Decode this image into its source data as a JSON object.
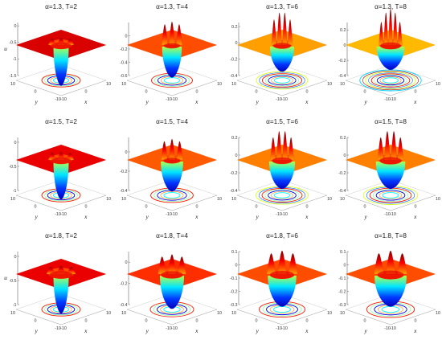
{
  "chart_data": [
    {
      "type": "surface3d",
      "title": "α=1.3, T=2",
      "zlabel": "u",
      "xlabel": "x",
      "ylabel": "y",
      "x_ticks": [
        "-10",
        "0",
        "10"
      ],
      "y_ticks": [
        "-10",
        "0",
        "10"
      ],
      "z_ticks": [
        "0",
        "-0.5",
        "-1",
        "-1.5"
      ],
      "zlim": [
        -1.5,
        0.1
      ],
      "peak": 0.05,
      "trough": -1.5,
      "ring_count": 1,
      "ring_width": 1.0,
      "trough_width": 1.0
    },
    {
      "type": "surface3d",
      "title": "α=1.3, T=4",
      "zlabel": "",
      "xlabel": "x",
      "ylabel": "y",
      "x_ticks": [
        "-10",
        "0",
        "10"
      ],
      "y_ticks": [
        "-10",
        "0",
        "10"
      ],
      "z_ticks": [
        "0",
        "-0.2",
        "-0.4",
        "-0.6"
      ],
      "zlim": [
        -0.6,
        0.2
      ],
      "peak": 0.2,
      "trough": -0.6,
      "ring_count": 1,
      "ring_width": 0.6,
      "trough_width": 1.5
    },
    {
      "type": "surface3d",
      "title": "α=1.3, T=6",
      "zlabel": "",
      "xlabel": "x",
      "ylabel": "y",
      "x_ticks": [
        "-10",
        "0",
        "10"
      ],
      "y_ticks": [
        "-10",
        "0",
        "10"
      ],
      "z_ticks": [
        "0.2",
        "0",
        "-0.2",
        "-0.4"
      ],
      "zlim": [
        -0.4,
        0.25
      ],
      "peak": 0.25,
      "trough": -0.4,
      "ring_count": 2,
      "ring_width": 0.5,
      "trough_width": 2.0
    },
    {
      "type": "surface3d",
      "title": "α=1.3, T=8",
      "zlabel": "",
      "xlabel": "x",
      "ylabel": "y",
      "x_ticks": [
        "-10",
        "0",
        "10"
      ],
      "y_ticks": [
        "-10",
        "0",
        "10"
      ],
      "z_ticks": [
        "0.2",
        "0",
        "-0.2",
        "-0.4"
      ],
      "zlim": [
        -0.4,
        0.3
      ],
      "peak": 0.3,
      "trough": -0.4,
      "ring_count": 3,
      "ring_width": 0.5,
      "trough_width": 2.4
    },
    {
      "type": "surface3d",
      "title": "α=1.5, T=2",
      "zlabel": "",
      "xlabel": "x",
      "ylabel": "y",
      "x_ticks": [
        "-10",
        "0",
        "10"
      ],
      "y_ticks": [
        "-10",
        "0",
        "10"
      ],
      "z_ticks": [
        "0",
        "-0.5",
        "-1"
      ],
      "zlim": [
        -1,
        0.1
      ],
      "peak": 0.05,
      "trough": -1.0,
      "ring_count": 1,
      "ring_width": 1.0,
      "trough_width": 1.0
    },
    {
      "type": "surface3d",
      "title": "α=1.5, T=4",
      "zlabel": "",
      "xlabel": "x",
      "ylabel": "y",
      "x_ticks": [
        "-10",
        "0",
        "10"
      ],
      "y_ticks": [
        "-10",
        "0",
        "10"
      ],
      "z_ticks": [
        "0",
        "-0.2",
        "-0.4"
      ],
      "zlim": [
        -0.4,
        0.15
      ],
      "peak": 0.12,
      "trough": -0.4,
      "ring_count": 1,
      "ring_width": 0.7,
      "trough_width": 1.8
    },
    {
      "type": "surface3d",
      "title": "α=1.5, T=6",
      "zlabel": "",
      "xlabel": "x",
      "ylabel": "y",
      "x_ticks": [
        "-10",
        "0",
        "10"
      ],
      "y_ticks": [
        "-10",
        "0",
        "10"
      ],
      "z_ticks": [
        "0.2",
        "0",
        "-0.2",
        "-0.4"
      ],
      "zlim": [
        -0.4,
        0.2
      ],
      "peak": 0.2,
      "trough": -0.4,
      "ring_count": 2,
      "ring_width": 0.7,
      "trough_width": 2.2
    },
    {
      "type": "surface3d",
      "title": "α=1.5, T=8",
      "zlabel": "",
      "xlabel": "x",
      "ylabel": "y",
      "x_ticks": [
        "-10",
        "0",
        "10"
      ],
      "y_ticks": [
        "-10",
        "0",
        "10"
      ],
      "z_ticks": [
        "0.2",
        "0",
        "-0.2",
        "-0.4"
      ],
      "zlim": [
        -0.4,
        0.2
      ],
      "peak": 0.2,
      "trough": -0.4,
      "ring_count": 2,
      "ring_width": 0.9,
      "trough_width": 2.6
    },
    {
      "type": "surface3d",
      "title": "α=1.8, T=2",
      "zlabel": "u",
      "xlabel": "x",
      "ylabel": "y",
      "x_ticks": [
        "-10",
        "0",
        "10"
      ],
      "y_ticks": [
        "-10",
        "0",
        "10"
      ],
      "z_ticks": [
        "0",
        "-0.5",
        "-1"
      ],
      "zlim": [
        -1,
        0.1
      ],
      "peak": 0.05,
      "trough": -1.0,
      "ring_count": 1,
      "ring_width": 1.3,
      "trough_width": 1.0
    },
    {
      "type": "surface3d",
      "title": "α=1.8, T=4",
      "zlabel": "",
      "xlabel": "x",
      "ylabel": "y",
      "x_ticks": [
        "-10",
        "0",
        "10"
      ],
      "y_ticks": [
        "-10",
        "0",
        "10"
      ],
      "z_ticks": [
        "0",
        "-0.2",
        "-0.4"
      ],
      "zlim": [
        -0.4,
        0.1
      ],
      "peak": 0.1,
      "trough": -0.4,
      "ring_count": 1,
      "ring_width": 1.2,
      "trough_width": 2.0
    },
    {
      "type": "surface3d",
      "title": "α=1.8, T=6",
      "zlabel": "",
      "xlabel": "x",
      "ylabel": "y",
      "x_ticks": [
        "-10",
        "0",
        "10"
      ],
      "y_ticks": [
        "-10",
        "0",
        "10"
      ],
      "z_ticks": [
        "0.1",
        "0",
        "-0.1",
        "-0.2",
        "-0.3"
      ],
      "zlim": [
        -0.3,
        0.1
      ],
      "peak": 0.1,
      "trough": -0.3,
      "ring_count": 1,
      "ring_width": 1.4,
      "trough_width": 2.5
    },
    {
      "type": "surface3d",
      "title": "α=1.8, T=8",
      "zlabel": "",
      "xlabel": "x",
      "ylabel": "y",
      "x_ticks": [
        "-10",
        "0",
        "10"
      ],
      "y_ticks": [
        "-10",
        "0",
        "10"
      ],
      "z_ticks": [
        "0.1",
        "0",
        "-0.1",
        "-0.2",
        "-0.3"
      ],
      "zlim": [
        -0.3,
        0.1
      ],
      "peak": 0.1,
      "trough": -0.3,
      "ring_count": 1,
      "ring_width": 1.6,
      "trough_width": 2.9
    }
  ]
}
